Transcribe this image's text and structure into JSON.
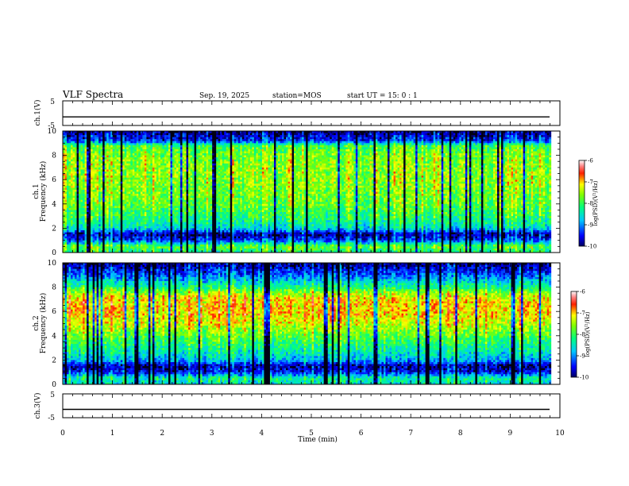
{
  "header": {
    "title": "VLF Spectra",
    "date": "Sep. 19, 2025",
    "station": "station=MOS",
    "start": "start  UT =   15: 0  : 1"
  },
  "chart_data": [
    {
      "type": "line",
      "ylabel": "ch.1(V)",
      "yticks": [
        "5",
        "-5"
      ],
      "ylim": [
        -5,
        5
      ],
      "x_range": [
        0,
        10
      ],
      "level": -1.5
    },
    {
      "type": "heatmap",
      "ylabel": "ch.1\nFrequency (kHz)",
      "ylabel_lines": [
        "ch.1",
        "Frequency (kHz)"
      ],
      "yticks": [
        "0",
        "2",
        "4",
        "6",
        "8",
        "10"
      ],
      "ylim": [
        0,
        10
      ],
      "x_range": [
        0,
        9.82
      ],
      "colorbar": {
        "label": "log(PSD)(V²/Hz)",
        "ticks": [
          "-6",
          "-7",
          "-8",
          "-9",
          "-10"
        ],
        "range": [
          -10,
          -6
        ]
      },
      "profile": [
        {
          "f_khz": 0.0,
          "log_psd": -8.3
        },
        {
          "f_khz": 0.5,
          "log_psd": -7.8
        },
        {
          "f_khz": 1.0,
          "log_psd": -9.3
        },
        {
          "f_khz": 1.5,
          "log_psd": -9.8
        },
        {
          "f_khz": 2.0,
          "log_psd": -8.6
        },
        {
          "f_khz": 3.0,
          "log_psd": -8.1
        },
        {
          "f_khz": 4.0,
          "log_psd": -7.8
        },
        {
          "f_khz": 5.0,
          "log_psd": -7.7
        },
        {
          "f_khz": 6.0,
          "log_psd": -7.6
        },
        {
          "f_khz": 7.0,
          "log_psd": -7.6
        },
        {
          "f_khz": 8.0,
          "log_psd": -7.7
        },
        {
          "f_khz": 8.8,
          "log_psd": -8.0
        },
        {
          "f_khz": 9.2,
          "log_psd": -9.4
        },
        {
          "f_khz": 10.0,
          "log_psd": -9.9
        }
      ]
    },
    {
      "type": "heatmap",
      "ylabel": "ch.2\nFrequency (kHz)",
      "ylabel_lines": [
        "ch.2",
        "Frequency (kHz)"
      ],
      "yticks": [
        "0",
        "2",
        "4",
        "6",
        "8",
        "10"
      ],
      "ylim": [
        0,
        10
      ],
      "x_range": [
        0,
        9.82
      ],
      "colorbar": {
        "label": "log(PSD)(V²/Hz)",
        "ticks": [
          "-6",
          "-7",
          "-8",
          "-9",
          "-10"
        ],
        "range": [
          -10,
          -6
        ]
      },
      "profile": [
        {
          "f_khz": 0.0,
          "log_psd": -8.6
        },
        {
          "f_khz": 0.5,
          "log_psd": -8.3
        },
        {
          "f_khz": 1.0,
          "log_psd": -9.5
        },
        {
          "f_khz": 1.5,
          "log_psd": -9.8
        },
        {
          "f_khz": 2.0,
          "log_psd": -8.8
        },
        {
          "f_khz": 3.0,
          "log_psd": -8.3
        },
        {
          "f_khz": 4.0,
          "log_psd": -7.8
        },
        {
          "f_khz": 5.0,
          "log_psd": -7.3
        },
        {
          "f_khz": 6.0,
          "log_psd": -7.0
        },
        {
          "f_khz": 7.0,
          "log_psd": -7.1
        },
        {
          "f_khz": 7.5,
          "log_psd": -7.5
        },
        {
          "f_khz": 8.0,
          "log_psd": -8.2
        },
        {
          "f_khz": 9.0,
          "log_psd": -9.2
        },
        {
          "f_khz": 10.0,
          "log_psd": -9.9
        }
      ]
    },
    {
      "type": "line",
      "ylabel": "ch.3(V)",
      "yticks": [
        "5",
        "-5"
      ],
      "ylim": [
        -5,
        5
      ],
      "x_range": [
        0,
        10
      ],
      "level": -1.5
    }
  ],
  "xaxis": {
    "label": "Time (min)",
    "ticks": [
      "0",
      "1",
      "2",
      "3",
      "4",
      "5",
      "6",
      "7",
      "8",
      "9",
      "10"
    ],
    "range": [
      0,
      10
    ]
  }
}
